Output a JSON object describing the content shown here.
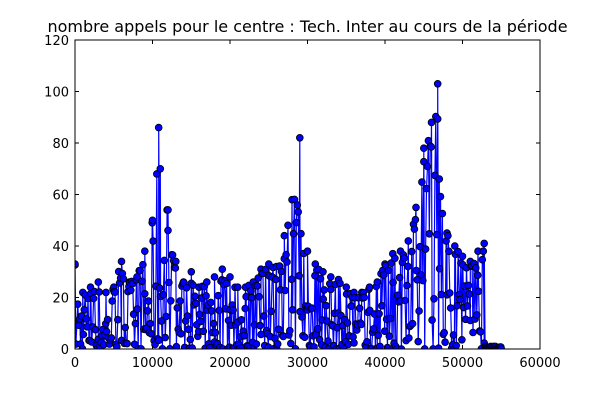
{
  "chart_data": {
    "type": "line",
    "title": "nombre appels pour le centre : Tech. Inter au cours de la période",
    "xlabel": "",
    "ylabel": "",
    "xlim": [
      0,
      60000
    ],
    "ylim": [
      0,
      120
    ],
    "x_ticks": [
      0,
      10000,
      20000,
      30000,
      40000,
      50000,
      60000
    ],
    "y_ticks": [
      0,
      20,
      40,
      60,
      80,
      100,
      120
    ],
    "grid": false,
    "marker": "circle",
    "line_color": "#0000ff",
    "marker_face_color": "#0000ff",
    "marker_edge_color": "#000000",
    "series": [
      {
        "x": [
          0,
          1000,
          2000,
          3000,
          4000,
          5000,
          6000,
          7000,
          8000,
          9000,
          10000,
          10800,
          11000,
          12000,
          13000,
          14000,
          15000,
          16000,
          17000,
          18000,
          19000,
          20000,
          21000,
          22000,
          23000,
          24000,
          25000,
          26000,
          27000,
          28000,
          29000,
          30000,
          31000,
          32000,
          33000,
          34000,
          35000,
          36000,
          37000,
          38000,
          39000,
          40000,
          41000,
          42000,
          43000,
          44000,
          45000,
          46000,
          46800,
          47000,
          48000,
          49000,
          50000,
          51000,
          52000,
          52800,
          53000,
          54000,
          55000
        ],
        "y": [
          33,
          22,
          24,
          26,
          22,
          24,
          34,
          26,
          28,
          38,
          50,
          86,
          70,
          54,
          34,
          26,
          30,
          24,
          26,
          28,
          31,
          28,
          24,
          24,
          26,
          31,
          33,
          32,
          44,
          58,
          82,
          38,
          33,
          30,
          28,
          27,
          24,
          22,
          22,
          24,
          26,
          33,
          37,
          38,
          42,
          55,
          78,
          88,
          103,
          66,
          45,
          40,
          36,
          34,
          38,
          41,
          1,
          1,
          0
        ]
      }
    ]
  }
}
